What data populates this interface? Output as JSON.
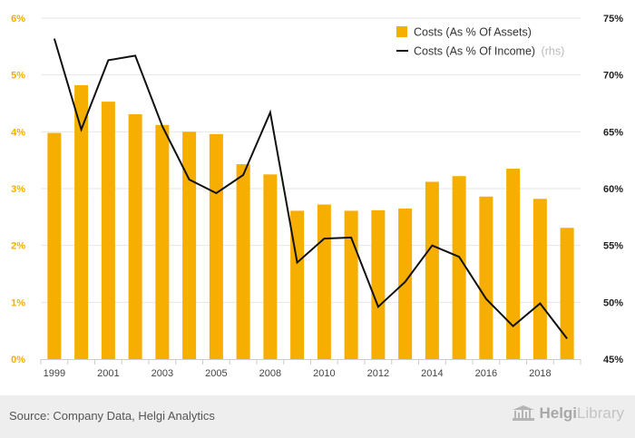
{
  "colors": {
    "bar": "#F6AE00",
    "line": "#111111",
    "left_axis_text": "#F6AE00",
    "right_axis_text": "#222222",
    "grid": "#e6e6e6",
    "rhs_note": "#bbbbbb"
  },
  "chart_data": {
    "type": "bar",
    "categories": [
      "1999",
      "2000",
      "2001",
      "2002",
      "2003",
      "2004",
      "2005",
      "2006",
      "2008",
      "2009",
      "2010",
      "2011",
      "2012",
      "2013",
      "2014",
      "2015",
      "2016",
      "2017",
      "2018",
      "2019"
    ],
    "x_tick_labels": [
      "1999",
      "2001",
      "2003",
      "2005",
      "2008",
      "2010",
      "2012",
      "2014",
      "2016",
      "2018"
    ],
    "series": [
      {
        "name": "Costs (As % Of Assets)",
        "type": "bar",
        "axis": "left",
        "values": [
          3.98,
          4.82,
          4.53,
          4.31,
          4.12,
          4.0,
          3.96,
          3.43,
          3.25,
          2.61,
          2.72,
          2.61,
          2.62,
          2.65,
          3.12,
          3.22,
          2.86,
          3.35,
          2.82,
          2.31
        ]
      },
      {
        "name": "Costs (As % Of Income)",
        "type": "line",
        "axis": "right",
        "values": [
          73.2,
          65.2,
          71.3,
          71.7,
          65.5,
          60.8,
          59.6,
          61.2,
          66.7,
          53.5,
          55.6,
          55.7,
          49.6,
          51.8,
          55.0,
          54.0,
          50.3,
          47.9,
          49.9,
          46.8
        ]
      }
    ],
    "y_left": {
      "min": 0,
      "max": 6,
      "ticks": [
        "0%",
        "1%",
        "2%",
        "3%",
        "4%",
        "5%",
        "6%"
      ]
    },
    "y_right": {
      "min": 45,
      "max": 75,
      "ticks": [
        "45%",
        "50%",
        "55%",
        "60%",
        "65%",
        "70%",
        "75%"
      ]
    },
    "legend": {
      "placement": "top-right",
      "bar_label": "Costs (As % Of Assets)",
      "line_label": "Costs (As % Of Income)",
      "line_note": "(rhs)"
    },
    "grid": true
  },
  "footer": {
    "source": "Source: Company Data, Helgi Analytics",
    "brand_strong": "Helgi",
    "brand_light": "Library"
  }
}
